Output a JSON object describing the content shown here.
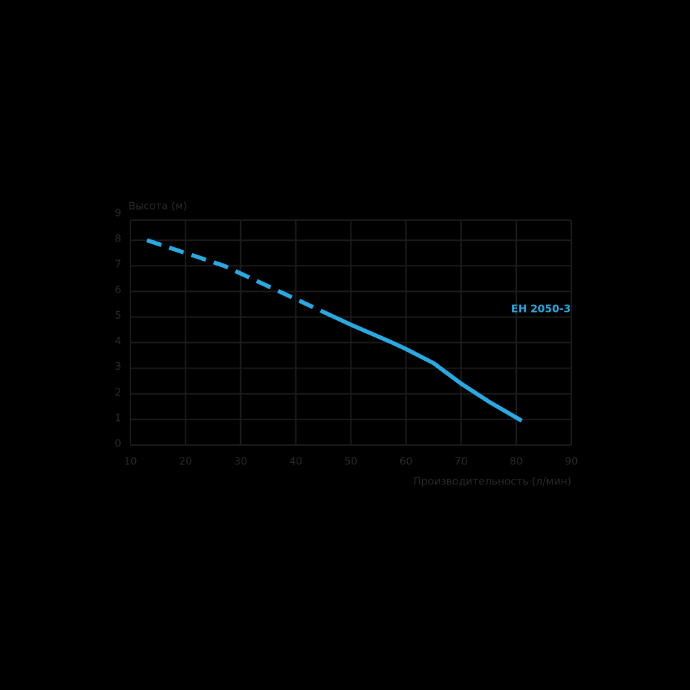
{
  "chart_data": {
    "type": "line",
    "y_label": "Высота (м)",
    "x_label": "Производительность (л/мин)",
    "xlim": [
      10,
      90
    ],
    "xticks": [
      10,
      20,
      30,
      40,
      50,
      60,
      70,
      80,
      90
    ],
    "ylim": [
      0,
      9
    ],
    "yticks": [
      0,
      1,
      2,
      3,
      4,
      5,
      6,
      7,
      8,
      9
    ],
    "grid": true,
    "series": [
      {
        "name": "EH 2050-3",
        "color": "#29aae2",
        "dashed": false,
        "x": [
          47,
          50,
          57,
          60,
          65,
          70,
          75,
          81
        ],
        "values": [
          5.0,
          4.7,
          4.05,
          3.75,
          3.2,
          2.4,
          1.7,
          0.95
        ]
      },
      {
        "color": "#29aae2",
        "dashed": true,
        "x": [
          13,
          20,
          27,
          30,
          40,
          47
        ],
        "values": [
          8.0,
          7.5,
          7.0,
          6.7,
          5.7,
          5.0
        ]
      }
    ]
  }
}
